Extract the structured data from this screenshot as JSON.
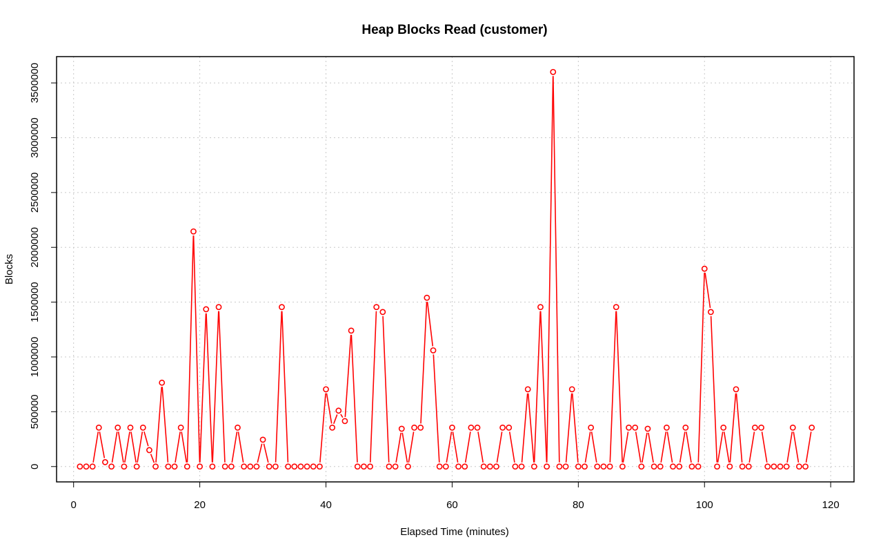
{
  "chart_data": {
    "type": "line",
    "title": "Heap Blocks Read (customer)",
    "xlabel": "Elapsed Time (minutes)",
    "ylabel": "Blocks",
    "xlim": [
      -2.7,
      123.7
    ],
    "ylim": [
      -140000,
      3740000
    ],
    "xticks": [
      0,
      20,
      40,
      60,
      80,
      100,
      120
    ],
    "yticks": [
      0,
      500000,
      1000000,
      1500000,
      2000000,
      2500000,
      3000000,
      3500000
    ],
    "xtick_labels": [
      "0",
      "20",
      "40",
      "60",
      "80",
      "100",
      "120"
    ],
    "ytick_labels": [
      "0",
      "500000",
      "1000000",
      "1500000",
      "2000000",
      "2500000",
      "3000000",
      "3500000"
    ],
    "grid": true,
    "series_color": "#ff0000",
    "series": [
      {
        "x": [
          1,
          2,
          3,
          4,
          5,
          6,
          7,
          8,
          9,
          10,
          11,
          12,
          13,
          14,
          15,
          16,
          17,
          18,
          19,
          20,
          21,
          22,
          23,
          24,
          25,
          26,
          27,
          28,
          29,
          30,
          31,
          32,
          33,
          34,
          35,
          36,
          37,
          38,
          39,
          40,
          41,
          42,
          43,
          44,
          45,
          46,
          47,
          48,
          49,
          50,
          51,
          52,
          53,
          54,
          55,
          56,
          57,
          58,
          59,
          60,
          61,
          62,
          63,
          64,
          65,
          66,
          67,
          68,
          69,
          70,
          71,
          72,
          73,
          74,
          75,
          76,
          77,
          78,
          79,
          80,
          81,
          82,
          83,
          84,
          85,
          86,
          87,
          88,
          89,
          90,
          91,
          92,
          93,
          94,
          95,
          96,
          97,
          98,
          99,
          100,
          101,
          102,
          103,
          104,
          105,
          106,
          107,
          108,
          109,
          110,
          111,
          112,
          113,
          114,
          115,
          116,
          117
        ],
        "values": [
          0,
          0,
          0,
          355000,
          40000,
          0,
          355000,
          0,
          355000,
          0,
          355000,
          150000,
          0,
          765000,
          0,
          0,
          355000,
          0,
          2145000,
          0,
          1435000,
          0,
          1455000,
          0,
          0,
          355000,
          0,
          0,
          0,
          245000,
          0,
          0,
          1455000,
          0,
          0,
          0,
          0,
          0,
          0,
          705000,
          355000,
          510000,
          415000,
          1240000,
          0,
          0,
          0,
          1455000,
          1410000,
          0,
          0,
          345000,
          0,
          355000,
          355000,
          1540000,
          1060000,
          0,
          0,
          355000,
          0,
          0,
          355000,
          355000,
          0,
          0,
          0,
          355000,
          355000,
          0,
          0,
          705000,
          0,
          1455000,
          0,
          3600000,
          0,
          0,
          705000,
          0,
          0,
          355000,
          0,
          0,
          0,
          1455000,
          0,
          355000,
          355000,
          0,
          345000,
          0,
          0,
          355000,
          0,
          0,
          355000,
          0,
          0,
          1805000,
          1410000,
          0,
          355000,
          0,
          705000,
          0,
          0,
          355000,
          355000,
          0,
          0,
          0,
          0,
          355000,
          0,
          0,
          355000
        ]
      }
    ]
  }
}
